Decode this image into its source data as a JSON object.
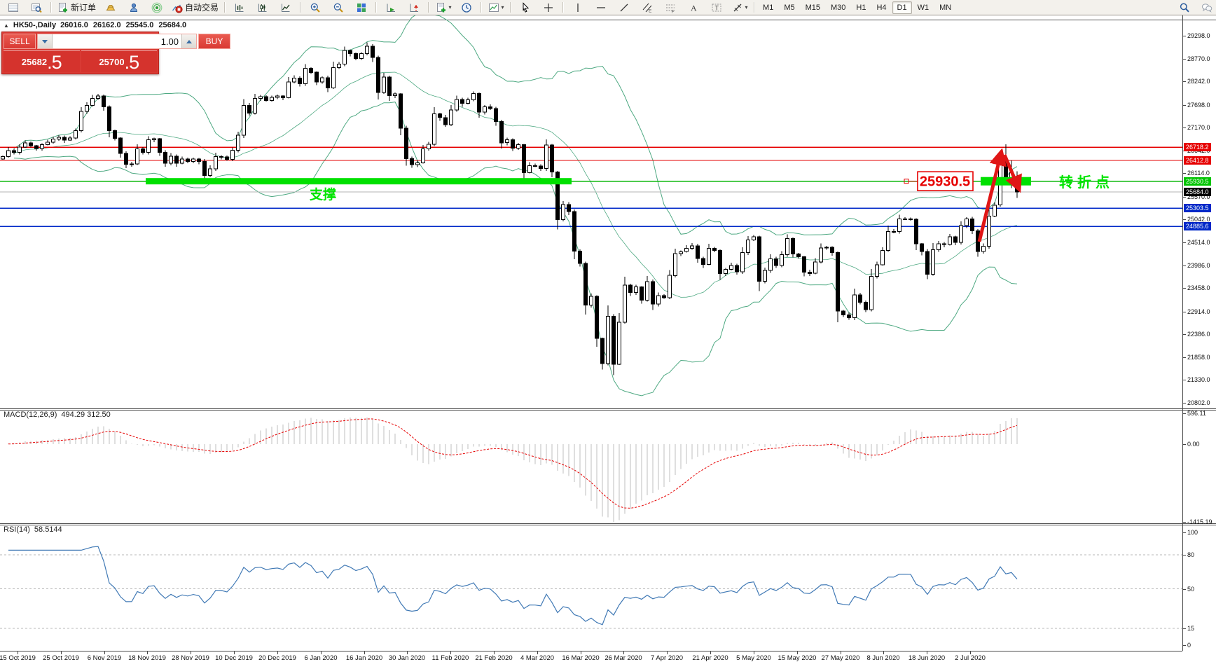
{
  "toolbar": {
    "new_order_label": "新订单",
    "auto_trading_label": "自动交易",
    "timeframes": [
      "M1",
      "M5",
      "M15",
      "M30",
      "H1",
      "H4",
      "D1",
      "W1",
      "MN"
    ],
    "active_timeframe": "D1"
  },
  "chart_header": {
    "collapse_icon": "▲",
    "symbol": "HK50-,Daily",
    "open": "26016.0",
    "high": "26162.0",
    "low": "25545.0",
    "close": "25684.0"
  },
  "trade_panel": {
    "sell_label": "SELL",
    "buy_label": "BUY",
    "volume": "1.00",
    "sell_price": "25682",
    "sell_price_pip": ".5",
    "buy_price": "25700",
    "buy_price_pip": ".5"
  },
  "annotations": {
    "level_box": "25930.5",
    "support": "支撑",
    "turning_point": "转折点"
  },
  "indicators": {
    "macd_label": "MACD(12,26,9)",
    "macd_values": "494.29 312.50",
    "rsi_label": "RSI(14)",
    "rsi_value": "58.5144",
    "macd_scale": [
      "596.11",
      "0.00",
      "-1415.19"
    ],
    "rsi_scale": [
      {
        "v": 100,
        "t": "100"
      },
      {
        "v": 80,
        "t": "80"
      },
      {
        "v": 50,
        "t": "50"
      },
      {
        "v": 15,
        "t": "15"
      },
      {
        "v": 0,
        "t": "0"
      }
    ],
    "rsi_levels": [
      80,
      50,
      15
    ]
  },
  "price_scale": {
    "ticks": [
      29298.0,
      28770.0,
      28242.0,
      27698.0,
      27170.0,
      26642.0,
      26114.0,
      25570.0,
      25042.0,
      24514.0,
      23986.0,
      23458.0,
      22914.0,
      22386.0,
      21858.0,
      21330.0,
      20802.0
    ],
    "tagged": [
      {
        "text": "26718.2",
        "price": 26718.2,
        "bg": "#e60000"
      },
      {
        "text": "26412.8",
        "price": 26412.8,
        "bg": "#e60000"
      },
      {
        "text": "25930.5",
        "price": 25930.5,
        "bg": "#00c400"
      },
      {
        "text": "25684.0",
        "price": 25684.0,
        "bg": "#000000"
      },
      {
        "text": "25303.5",
        "price": 25303.5,
        "bg": "#0028c8"
      },
      {
        "text": "24885.6",
        "price": 24885.6,
        "bg": "#0028c8"
      }
    ]
  },
  "chart_data": {
    "type": "candlestick",
    "title": "HK50- Daily",
    "x_labels": [
      "15 Oct 2019",
      "25 Oct 2019",
      "6 Nov 2019",
      "18 Nov 2019",
      "28 Nov 2019",
      "10 Dec 2019",
      "20 Dec 2019",
      "6 Jan 2020",
      "16 Jan 2020",
      "30 Jan 2020",
      "11 Feb 2020",
      "21 Feb 2020",
      "4 Mar 2020",
      "16 Mar 2020",
      "26 Mar 2020",
      "7 Apr 2020",
      "21 Apr 2020",
      "5 May 2020",
      "15 May 2020",
      "27 May 2020",
      "8 Jun 2020",
      "18 Jun 2020",
      "2 Jul 2020"
    ],
    "y_range": [
      20802,
      29768
    ],
    "closes": [
      26503,
      26640,
      26600,
      26720,
      26820,
      26750,
      26690,
      26780,
      26830,
      26906,
      26950,
      26880,
      26930,
      27100,
      27547,
      27683,
      27847,
      27900,
      27651,
      27100,
      26927,
      26571,
      26324,
      26327,
      26681,
      26595,
      26889,
      26913,
      26595,
      26346,
      26506,
      26349,
      26444,
      26391,
      26445,
      26391,
      26062,
      26217,
      26498,
      26494,
      26436,
      26645,
      26994,
      27687,
      27508,
      27843,
      27884,
      27800,
      27871,
      27906,
      27864,
      28225,
      28319,
      28189,
      28543,
      28451,
      28226,
      28322,
      28087,
      28561,
      28638,
      28954,
      28885,
      28773,
      28883,
      29056,
      28795,
      27985,
      28341,
      27909,
      27949,
      27161,
      26449,
      26313,
      26357,
      26676,
      26787,
      27493,
      27405,
      27242,
      27583,
      27824,
      27730,
      27816,
      27960,
      27530,
      27656,
      27609,
      27309,
      26821,
      26893,
      26696,
      26778,
      26130,
      26292,
      26285,
      26222,
      26767,
      26147,
      25040,
      25392,
      25231,
      24309,
      24032,
      23063,
      23264,
      22292,
      21709,
      22805,
      21696,
      22663,
      23527,
      23352,
      23484,
      23175,
      23603,
      23085,
      23280,
      23236,
      23749,
      24253,
      24300,
      24380,
      24435,
      24145,
      24007,
      24380,
      24330,
      23793,
      23893,
      23977,
      23831,
      24280,
      24575,
      24643,
      23613,
      23868,
      24137,
      23980,
      24230,
      24602,
      24245,
      24180,
      23829,
      23797,
      24057,
      24388,
      24399,
      24280,
      22930,
      22835,
      22772,
      23301,
      23132,
      22961,
      23732,
      23996,
      24326,
      24770,
      24770,
      25057,
      25057,
      25049,
      24480,
      24301,
      23776,
      24344,
      24481,
      24464,
      24643,
      24511,
      24907,
      25058,
      24781,
      24301,
      24427,
      25124,
      25373,
      26429,
      25975,
      26129,
      25684
    ],
    "bar_overrides": {
      "178": {
        "open": 25380,
        "high": 26474,
        "low": 25340,
        "close": 26429
      },
      "179": {
        "open": 26440,
        "high": 26782,
        "low": 25880,
        "close": 25975
      },
      "180": {
        "open": 25970,
        "high": 26412,
        "low": 25770,
        "close": 26129
      },
      "181": {
        "open": 26016,
        "high": 26162,
        "low": 25545,
        "close": 25684
      }
    },
    "hlines": [
      {
        "price": 26718.2,
        "color": "#e60000",
        "width": 1.3
      },
      {
        "price": 26412.8,
        "color": "#e60000",
        "width": 1.3
      },
      {
        "price": 25930.5,
        "color": "#00b400",
        "width": 1.6
      },
      {
        "price": 25684.0,
        "color": "#b4b4b4",
        "width": 1
      },
      {
        "price": 25303.5,
        "color": "#0028c8",
        "width": 1.6
      },
      {
        "price": 24885.6,
        "color": "#0028c8",
        "width": 1.6
      }
    ],
    "support_zones": [
      {
        "from": 26,
        "to": 101,
        "price": 25930.5,
        "h": 9
      },
      {
        "from": 175,
        "to": 183,
        "price": 25930.5,
        "h": 12
      }
    ],
    "bollinger": {
      "period": 20,
      "deviation": 2
    },
    "macd": {
      "fast": 12,
      "slow": 26,
      "signal": 9
    },
    "rsi": {
      "period": 14
    },
    "colors": {
      "bands": "#4ea982",
      "candle_up": "#ffffff",
      "candle_down": "#000000",
      "candle_line": "#000000",
      "zone": "#00e000",
      "annotation_green": "#00e400",
      "annotation_red": "#e60000",
      "arrow": "#e01616",
      "macd_hist": "#bfbfbf",
      "macd_signal": "#e60000",
      "rsi_line": "#4079b5",
      "level_dash": "#b8b8b8"
    }
  }
}
